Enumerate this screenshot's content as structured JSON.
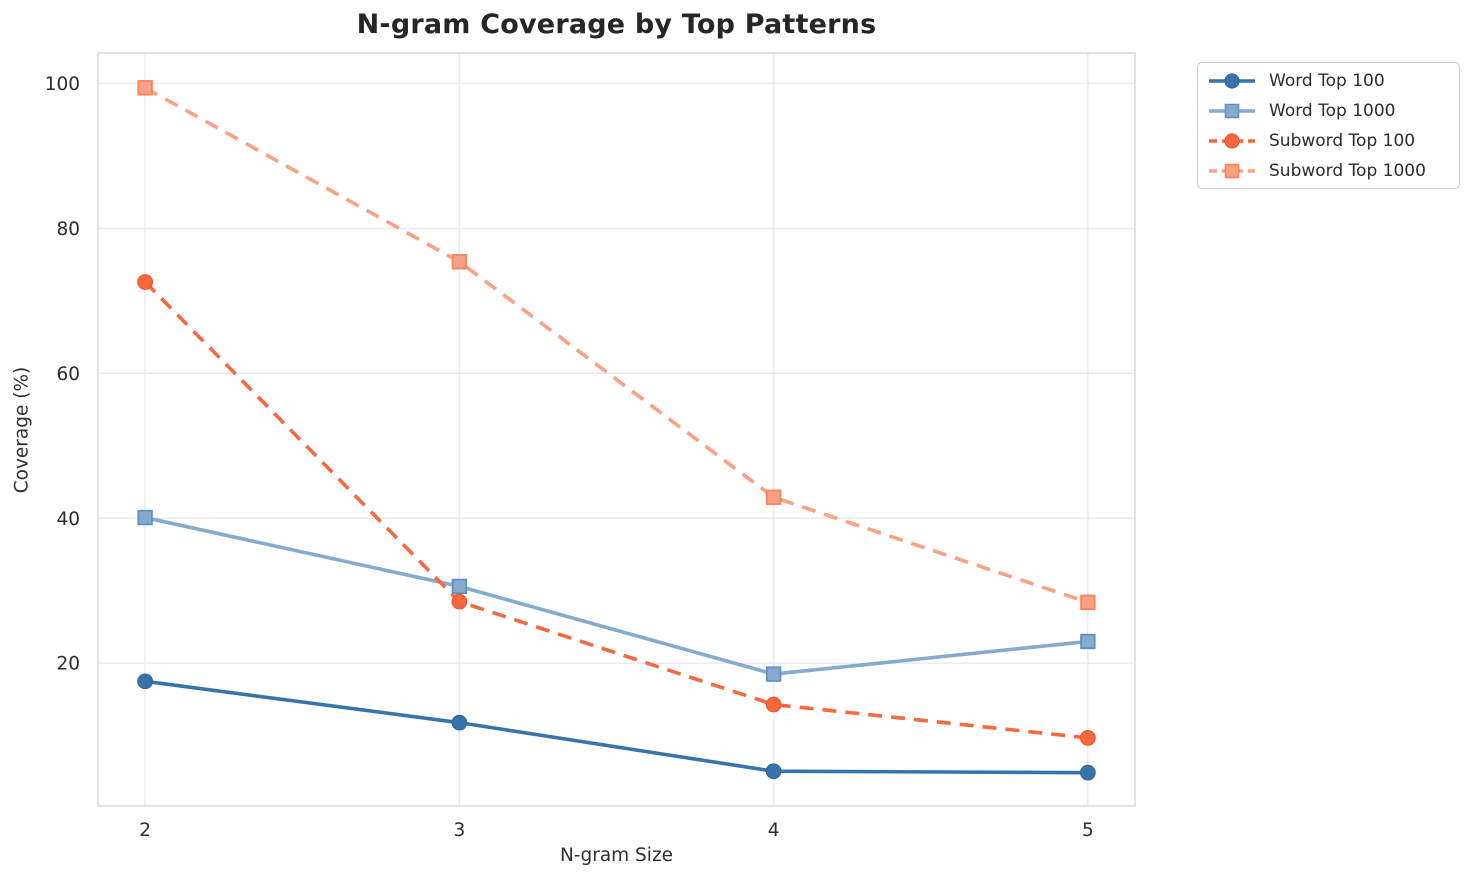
{
  "figure": {
    "title": "N-gram Coverage by Top Patterns",
    "xlabel": "N-gram Size",
    "ylabel": "Coverage (%)"
  },
  "chart_data": {
    "type": "line",
    "title": "N-gram Coverage by Top Patterns",
    "xlabel": "N-gram Size",
    "ylabel": "Coverage (%)",
    "x": [
      2,
      3,
      4,
      5
    ],
    "x_ticks": [
      "2",
      "3",
      "4",
      "5"
    ],
    "y_ticks": [
      20,
      40,
      60,
      80,
      100
    ],
    "xlim": [
      1.85,
      5.15
    ],
    "ylim": [
      0.3,
      104.2
    ],
    "grid": true,
    "legend_position": "outside upper right",
    "series": [
      {
        "name": "Word Top 100",
        "values": [
          17.5,
          11.8,
          5.1,
          4.9
        ],
        "color": "#3674ab",
        "edge_color": "#2e67a0",
        "marker": "circle",
        "line_style": "solid"
      },
      {
        "name": "Word Top 1000",
        "values": [
          40.1,
          30.6,
          18.5,
          23.0
        ],
        "color": "#85aacd",
        "edge_color": "#5e92c4",
        "marker": "square",
        "line_style": "solid"
      },
      {
        "name": "Subword Top 100",
        "values": [
          72.6,
          28.5,
          14.3,
          9.7
        ],
        "color": "#f8683f",
        "edge_color": "#f0542b",
        "marker": "circle",
        "line_style": "dashed"
      },
      {
        "name": "Subword Top 1000",
        "values": [
          99.4,
          75.4,
          42.9,
          28.4
        ],
        "color": "#faa183",
        "edge_color": "#f8845c",
        "marker": "square",
        "line_style": "dashed"
      }
    ]
  }
}
